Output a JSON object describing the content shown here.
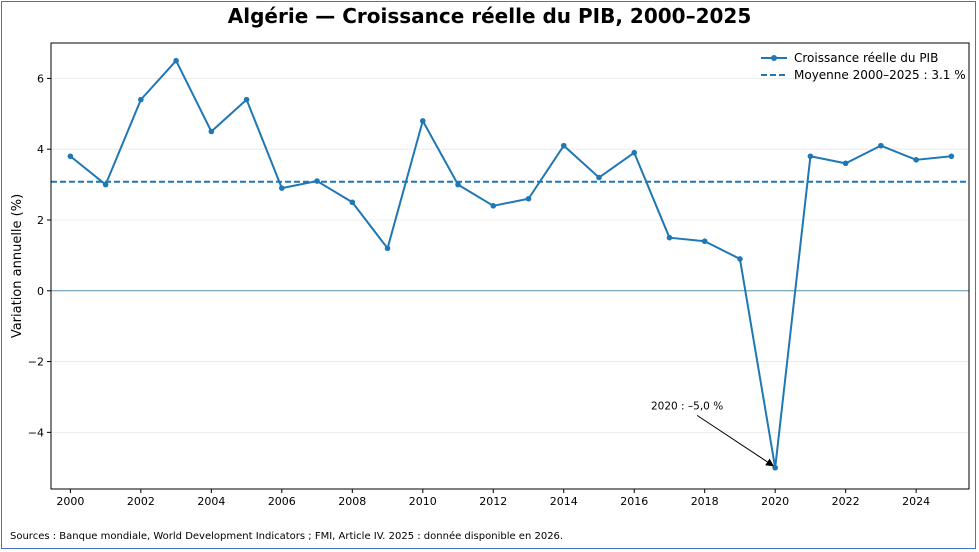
{
  "chart_data": {
    "type": "line",
    "title": "Algérie — Croissance réelle du PIB, 2000–2025",
    "ylabel": "Variation annuelle (%)",
    "xlabel": "",
    "xlim": [
      1999.45,
      2025.5
    ],
    "ylim": [
      -5.6,
      7.0
    ],
    "grid": true,
    "legend_position": "top-right",
    "x": [
      2000,
      2001,
      2002,
      2003,
      2004,
      2005,
      2006,
      2007,
      2008,
      2009,
      2010,
      2011,
      2012,
      2013,
      2014,
      2015,
      2016,
      2017,
      2018,
      2019,
      2020,
      2021,
      2022,
      2023,
      2024,
      2025
    ],
    "series": [
      {
        "name": "Croissance réelle du PIB",
        "values": [
          3.8,
          3.0,
          5.4,
          6.5,
          4.5,
          5.4,
          2.9,
          3.1,
          2.5,
          1.2,
          4.8,
          3.0,
          2.4,
          2.6,
          4.1,
          3.2,
          3.9,
          1.5,
          1.4,
          0.9,
          -5.0,
          3.8,
          3.6,
          4.1,
          3.7,
          3.8
        ],
        "color": "#1f77b4"
      }
    ],
    "reference_lines": [
      {
        "name": "Moyenne 2000–2025 : 3.1 %",
        "y": 3.08,
        "style": "dashed",
        "color": "#1f77b4"
      },
      {
        "y": 0,
        "style": "solid",
        "color": "#5a8fb0"
      }
    ],
    "x_ticks": [
      2000,
      2002,
      2004,
      2006,
      2008,
      2010,
      2012,
      2014,
      2016,
      2018,
      2020,
      2022,
      2024
    ],
    "x_tick_labels": [
      "2000",
      "2002",
      "2004",
      "2006",
      "2008",
      "2010",
      "2012",
      "2014",
      "2016",
      "2018",
      "2020",
      "2022",
      "2024"
    ],
    "y_ticks": [
      -4,
      -2,
      0,
      2,
      4,
      6
    ],
    "y_tick_labels": [
      "−4",
      "−2",
      "0",
      "2",
      "4",
      "6"
    ],
    "annotations": [
      {
        "text": "2020 : –5,0 %",
        "x": 2020,
        "y": -5.0,
        "text_x": 2017.5,
        "text_y": -3.35
      }
    ]
  },
  "footer": {
    "source": "Sources : Banque mondiale, World Development Indicators ; FMI, Article IV. 2025 : donnée disponible en 2026."
  }
}
